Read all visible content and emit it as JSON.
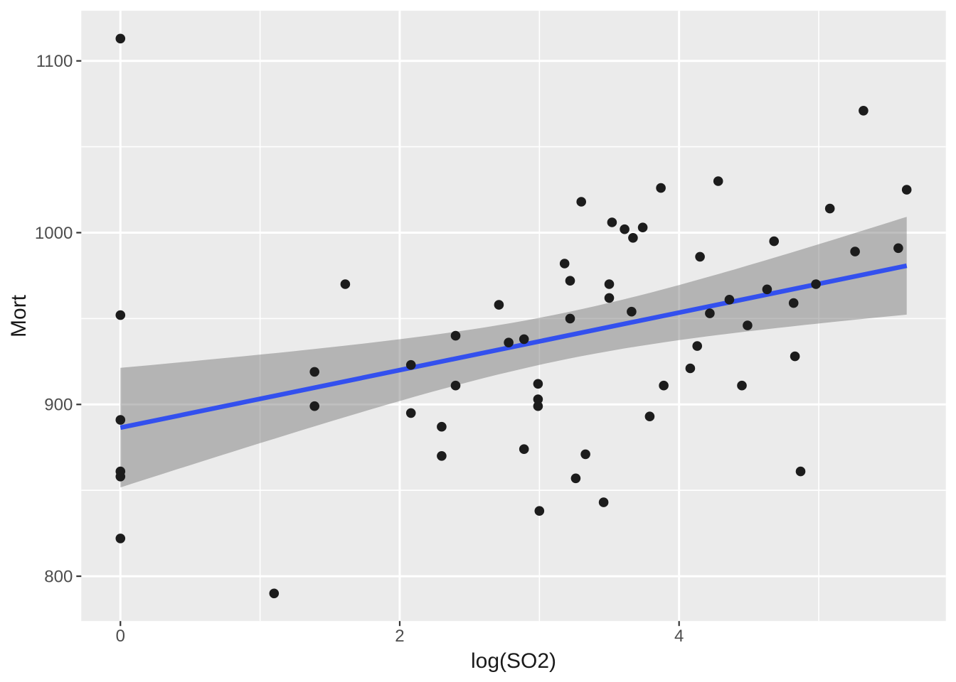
{
  "chart_data": {
    "type": "scatter",
    "title": "",
    "xlabel": "log(SO2)",
    "ylabel": "Mort",
    "x_ticks": [
      0,
      2,
      4
    ],
    "y_ticks": [
      800,
      900,
      1000,
      1100
    ],
    "x_minor_gridlines": [
      1,
      3,
      5
    ],
    "y_minor_gridlines": [
      850,
      950,
      1050
    ],
    "xlim": [
      -0.28,
      5.91
    ],
    "ylim": [
      773.9,
      1129.2
    ],
    "grid": "on",
    "legend": "none",
    "points": [
      [
        0,
        1113
      ],
      [
        0,
        952
      ],
      [
        0,
        891
      ],
      [
        0,
        861
      ],
      [
        0,
        858
      ],
      [
        0,
        822
      ],
      [
        1.1,
        790
      ],
      [
        1.39,
        919
      ],
      [
        1.39,
        899
      ],
      [
        1.61,
        970
      ],
      [
        2.08,
        923
      ],
      [
        2.08,
        895
      ],
      [
        2.3,
        887
      ],
      [
        2.3,
        870
      ],
      [
        2.4,
        940
      ],
      [
        2.4,
        911
      ],
      [
        2.71,
        958
      ],
      [
        2.78,
        936
      ],
      [
        2.89,
        938
      ],
      [
        2.89,
        874
      ],
      [
        2.99,
        912
      ],
      [
        2.99,
        903
      ],
      [
        2.99,
        899
      ],
      [
        3.0,
        838
      ],
      [
        3.18,
        982
      ],
      [
        3.22,
        972
      ],
      [
        3.22,
        950
      ],
      [
        3.26,
        857
      ],
      [
        3.3,
        1018
      ],
      [
        3.33,
        871
      ],
      [
        3.46,
        843
      ],
      [
        3.5,
        970
      ],
      [
        3.5,
        962
      ],
      [
        3.52,
        1006
      ],
      [
        3.61,
        1002
      ],
      [
        3.66,
        954
      ],
      [
        3.67,
        997
      ],
      [
        3.74,
        1003
      ],
      [
        3.79,
        893
      ],
      [
        3.87,
        1026
      ],
      [
        3.89,
        911
      ],
      [
        4.08,
        921
      ],
      [
        4.13,
        934
      ],
      [
        4.15,
        986
      ],
      [
        4.22,
        953
      ],
      [
        4.28,
        1030
      ],
      [
        4.36,
        961
      ],
      [
        4.45,
        911
      ],
      [
        4.49,
        946
      ],
      [
        4.63,
        967
      ],
      [
        4.68,
        995
      ],
      [
        4.82,
        959
      ],
      [
        4.83,
        928
      ],
      [
        4.87,
        861
      ],
      [
        4.98,
        970
      ],
      [
        5.08,
        1014
      ],
      [
        5.26,
        989
      ],
      [
        5.32,
        1071
      ],
      [
        5.57,
        991
      ],
      [
        5.63,
        1025
      ]
    ],
    "trend_line": {
      "model": "lm",
      "intercept": 886.5,
      "slope": 16.74,
      "x_start": 0,
      "x_end": 5.63
    },
    "ci_band": {
      "x_start": 0,
      "x_end": 5.63,
      "center_x": 3.16,
      "halfwidth_at_center": 13.6,
      "halfwidth_curvature": 102.7,
      "halfwidth_at_x0": 34.8,
      "halfwidth_at_xend": 28.5
    },
    "colors": {
      "background": "#FFFFFF",
      "panel": "#EBEBEB",
      "grid": "#FFFFFF",
      "point": "#1C1C1C",
      "trend_line": "#3350EE",
      "ci_fill": "rgba(112,112,112,0.45)",
      "tick_label": "#4D4D4D",
      "axis_title": "#1A1A1A",
      "tick_mark": "#333333"
    }
  }
}
